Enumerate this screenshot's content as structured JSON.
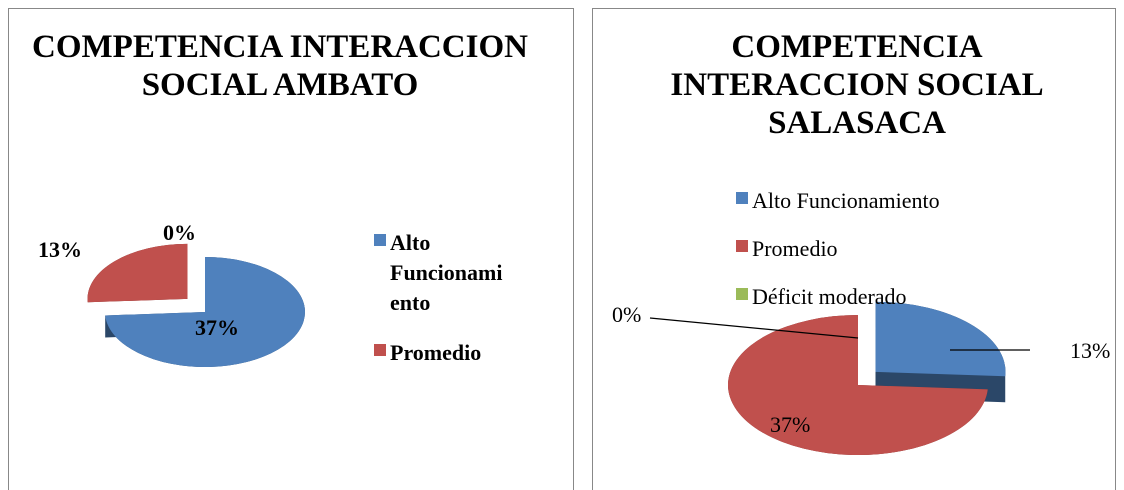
{
  "chart_data": [
    {
      "type": "pie",
      "title": "COMPETENCIA INTERACCION SOCIAL AMBATO",
      "categories": [
        "Alto Funcionamiento",
        "Promedio",
        null
      ],
      "values": [
        37,
        13,
        0
      ],
      "value_labels": [
        "37%",
        "13%",
        "0%"
      ],
      "colors": [
        "#4f81bd",
        "#c0504d",
        "#9bbb59"
      ],
      "legend": "right"
    },
    {
      "type": "pie",
      "title": "COMPETENCIA INTERACCION SOCIAL SALASACA",
      "categories": [
        "Alto Funcionamiento",
        "Promedio",
        "Déficit moderado"
      ],
      "values": [
        13,
        37,
        0
      ],
      "value_labels": [
        "13%",
        "37%",
        "0%"
      ],
      "colors": [
        "#4f81bd",
        "#c0504d",
        "#9bbb59"
      ],
      "legend": "top"
    }
  ]
}
